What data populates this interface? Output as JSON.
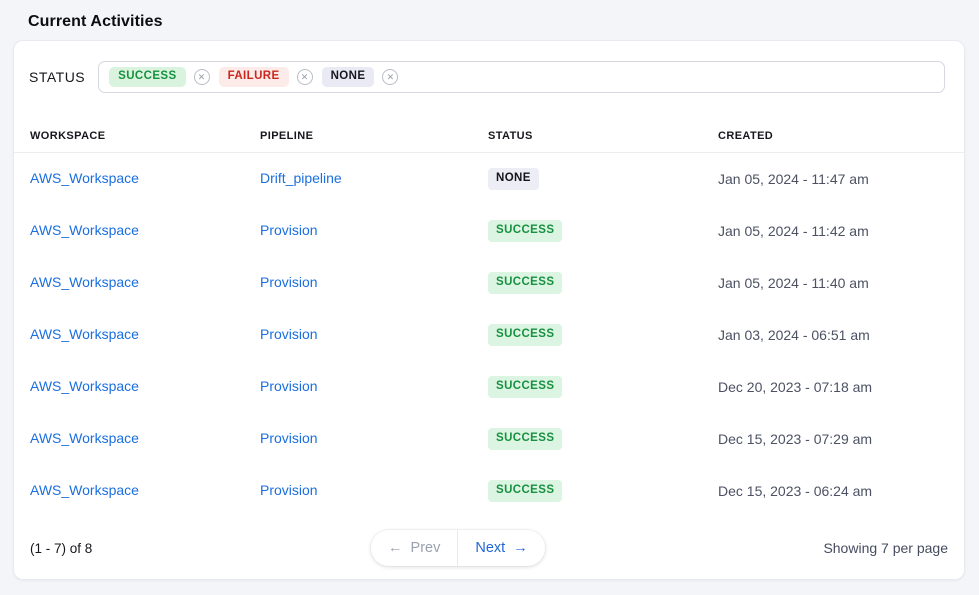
{
  "page": {
    "title": "Current Activities"
  },
  "filter": {
    "label": "STATUS",
    "remove_glyph": "✕",
    "chips": [
      {
        "label": "SUCCESS",
        "type": "success"
      },
      {
        "label": "FAILURE",
        "type": "failure"
      },
      {
        "label": "NONE",
        "type": "none"
      }
    ]
  },
  "table": {
    "columns": [
      "WORKSPACE",
      "PIPELINE",
      "STATUS",
      "CREATED"
    ],
    "rows": [
      {
        "workspace": "AWS_Workspace",
        "pipeline": "Drift_pipeline",
        "status": "NONE",
        "status_type": "none",
        "created": "Jan 05, 2024 - 11:47 am"
      },
      {
        "workspace": "AWS_Workspace",
        "pipeline": "Provision",
        "status": "SUCCESS",
        "status_type": "success",
        "created": "Jan 05, 2024 - 11:42 am"
      },
      {
        "workspace": "AWS_Workspace",
        "pipeline": "Provision",
        "status": "SUCCESS",
        "status_type": "success",
        "created": "Jan 05, 2024 - 11:40 am"
      },
      {
        "workspace": "AWS_Workspace",
        "pipeline": "Provision",
        "status": "SUCCESS",
        "status_type": "success",
        "created": "Jan 03, 2024 - 06:51 am"
      },
      {
        "workspace": "AWS_Workspace",
        "pipeline": "Provision",
        "status": "SUCCESS",
        "status_type": "success",
        "created": "Dec 20, 2023 - 07:18 am"
      },
      {
        "workspace": "AWS_Workspace",
        "pipeline": "Provision",
        "status": "SUCCESS",
        "status_type": "success",
        "created": "Dec 15, 2023 - 07:29 am"
      },
      {
        "workspace": "AWS_Workspace",
        "pipeline": "Provision",
        "status": "SUCCESS",
        "status_type": "success",
        "created": "Dec 15, 2023 - 06:24 am"
      }
    ]
  },
  "pagination": {
    "range_text": "(1 - 7) of 8",
    "prev_arrow": "←",
    "prev_label": "Prev",
    "next_label": "Next",
    "next_arrow": "→",
    "per_page_text": "Showing 7 per page"
  },
  "colors": {
    "link_blue": "#1a6fe0",
    "next_blue": "#2166d6",
    "success_text": "#179140",
    "success_bg": "#dcf4e2",
    "failure_text": "#cb271e",
    "failure_bg": "#fcebe8",
    "none_text": "#14151c",
    "none_bg": "#ededf5",
    "page_bg": "#f4f5f9",
    "card_bg": "#ffffff"
  }
}
